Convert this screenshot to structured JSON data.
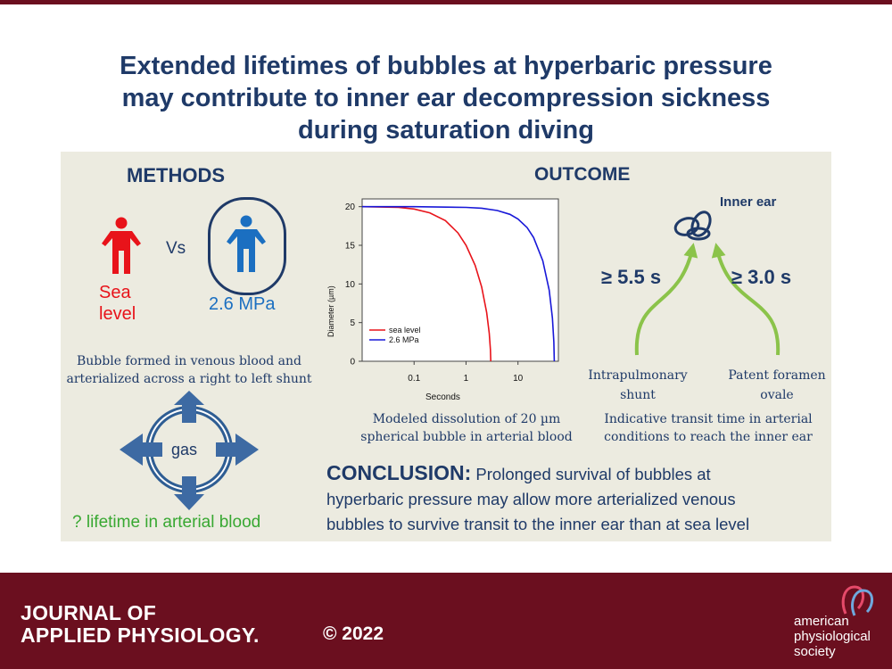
{
  "title_lines": [
    "Extended lifetimes of bubbles at hyperbaric pressure",
    "may contribute to inner ear decompression sickness",
    "during saturation diving"
  ],
  "methods": {
    "heading": "METHODS",
    "vs": "Vs",
    "sea_level_lines": [
      "Sea",
      "level"
    ],
    "pressure_label": "2.6 MPa",
    "bubble_text_lines": [
      "Bubble formed in venous blood and",
      "arterialized across a right to left shunt"
    ],
    "gas_label": "gas",
    "lifetime_label": "? lifetime in arterial blood"
  },
  "outcome": {
    "heading": "OUTCOME",
    "chart_caption_lines": [
      "Modeled dissolution of 20 µm",
      "spherical bubble in arterial blood"
    ],
    "inner_ear_label": "Inner ear",
    "time_left": "≥ 5.5 s",
    "time_right": "≥ 3.0 s",
    "source_left_lines": [
      "Intrapulmonary",
      "shunt"
    ],
    "source_right_lines": [
      "Patent foramen",
      "ovale"
    ],
    "transit_text_lines": [
      "Indicative transit time in arterial",
      "conditions to reach the inner ear"
    ]
  },
  "conclusion": {
    "label": "CONCLUSION:",
    "lines": [
      " Prolonged survival of bubbles at",
      "hyperbaric pressure may allow more arterialized venous",
      "bubbles to survive transit to the inner ear than at sea level"
    ]
  },
  "footer": {
    "journal_lines": [
      "JOURNAL OF",
      "APPLIED PHYSIOLOGY."
    ],
    "copyright": "© 2022",
    "society_lines": [
      "american",
      "physiological",
      "society"
    ]
  },
  "colors": {
    "sea_level": "#e8131a",
    "hyperbaric": "#1b6fc1",
    "accent_green": "#8bc34a",
    "navy": "#1f3a68",
    "footer_bg": "#6b0f1f"
  },
  "chart_data": {
    "type": "line",
    "xlabel": "Seconds",
    "ylabel": "Diameter (µm)",
    "x_scale": "log",
    "xlim": [
      0.01,
      60
    ],
    "ylim": [
      0,
      21
    ],
    "x_ticks": [
      0.1,
      1,
      10
    ],
    "y_ticks": [
      0,
      5,
      10,
      15,
      20
    ],
    "grid": false,
    "legend_position": "bottom-left",
    "series": [
      {
        "name": "sea level",
        "color": "#e8131a",
        "t_end": 3.0,
        "x": [
          0.01,
          0.05,
          0.1,
          0.2,
          0.4,
          0.7,
          1.0,
          1.5,
          2.0,
          2.5,
          2.8,
          2.95,
          3.0
        ],
        "y": [
          20,
          19.9,
          19.7,
          19.2,
          18.2,
          16.6,
          15.0,
          12.4,
          9.6,
          6.3,
          3.6,
          1.5,
          0
        ]
      },
      {
        "name": "2.6 MPa",
        "color": "#1818d8",
        "t_end": 50,
        "x": [
          0.01,
          0.1,
          1,
          2,
          4,
          7,
          10,
          15,
          20,
          30,
          40,
          46,
          49,
          50
        ],
        "y": [
          20,
          20,
          19.9,
          19.8,
          19.5,
          19.0,
          18.4,
          17.3,
          16.0,
          13.0,
          9.2,
          5.6,
          2.5,
          0
        ]
      }
    ]
  }
}
